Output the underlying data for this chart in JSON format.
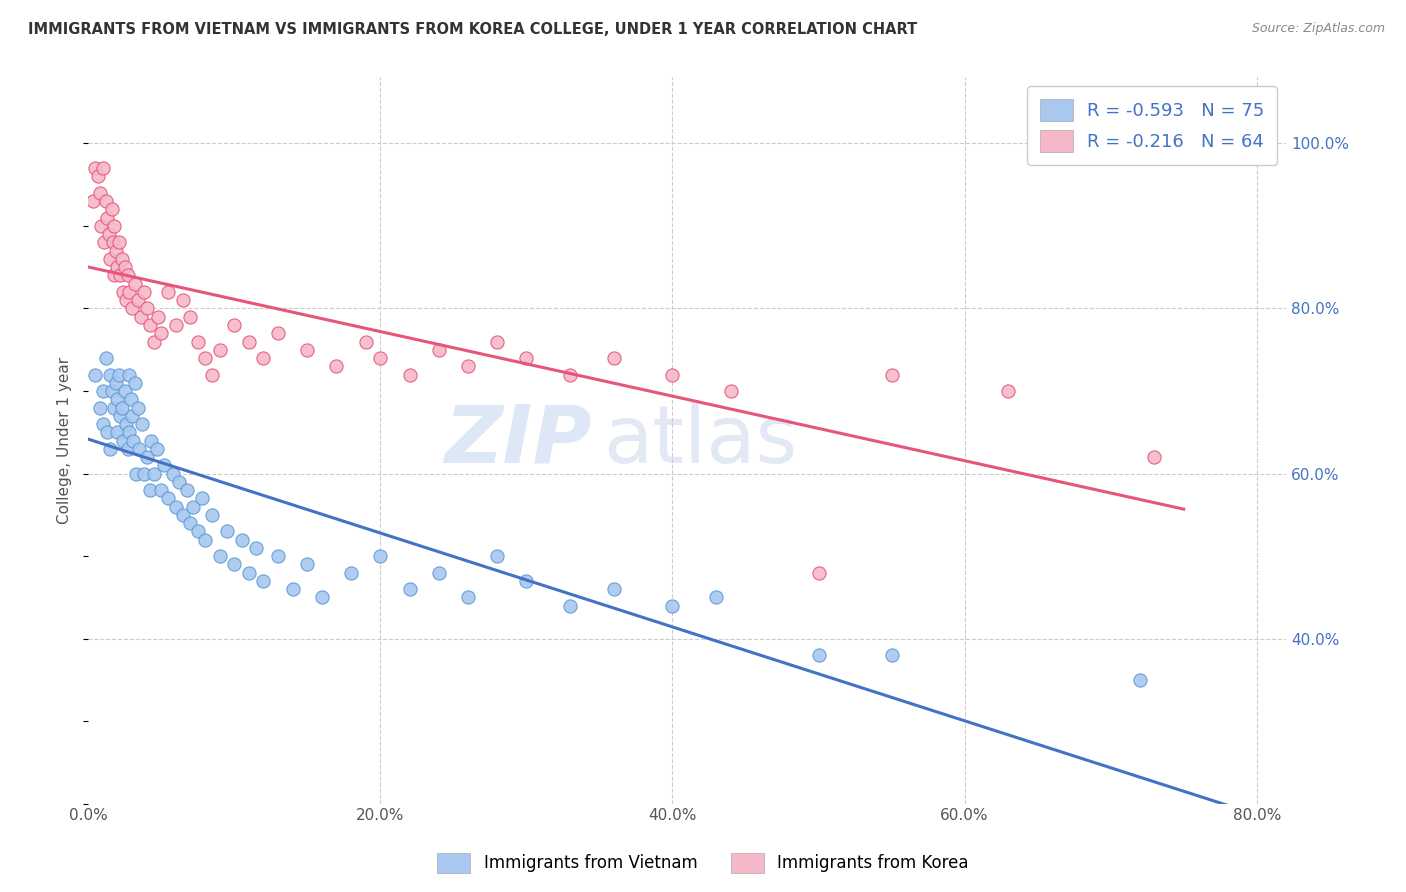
{
  "title": "IMMIGRANTS FROM VIETNAM VS IMMIGRANTS FROM KOREA COLLEGE, UNDER 1 YEAR CORRELATION CHART",
  "source": "Source: ZipAtlas.com",
  "ylabel": "College, Under 1 year",
  "xlim": [
    0.0,
    0.82
  ],
  "ylim": [
    0.2,
    1.08
  ],
  "xtick_labels": [
    "0.0%",
    "20.0%",
    "40.0%",
    "60.0%",
    "80.0%"
  ],
  "xtick_values": [
    0.0,
    0.2,
    0.4,
    0.6,
    0.8
  ],
  "ytick_labels_right": [
    "100.0%",
    "80.0%",
    "60.0%",
    "40.0%"
  ],
  "ytick_values": [
    1.0,
    0.8,
    0.6,
    0.4
  ],
  "legend_labels": [
    "Immigrants from Vietnam",
    "Immigrants from Korea"
  ],
  "legend_R": [
    -0.593,
    -0.216
  ],
  "legend_N": [
    75,
    64
  ],
  "blue_scatter_color": "#A8C8F0",
  "pink_scatter_color": "#F5B8C8",
  "blue_line_color": "#4472C4",
  "pink_line_color": "#E8557A",
  "blue_edge_color": "#5B9BD5",
  "pink_edge_color": "#E8557A",
  "watermark_zip": "ZIP",
  "watermark_atlas": "atlas",
  "vietnam_x": [
    0.005,
    0.008,
    0.01,
    0.01,
    0.012,
    0.013,
    0.015,
    0.015,
    0.016,
    0.018,
    0.019,
    0.02,
    0.02,
    0.021,
    0.022,
    0.023,
    0.024,
    0.025,
    0.026,
    0.027,
    0.028,
    0.028,
    0.029,
    0.03,
    0.031,
    0.032,
    0.033,
    0.034,
    0.035,
    0.037,
    0.038,
    0.04,
    0.042,
    0.043,
    0.045,
    0.047,
    0.05,
    0.052,
    0.055,
    0.058,
    0.06,
    0.062,
    0.065,
    0.068,
    0.07,
    0.072,
    0.075,
    0.078,
    0.08,
    0.085,
    0.09,
    0.095,
    0.1,
    0.105,
    0.11,
    0.115,
    0.12,
    0.13,
    0.14,
    0.15,
    0.16,
    0.18,
    0.2,
    0.22,
    0.24,
    0.26,
    0.28,
    0.3,
    0.33,
    0.36,
    0.4,
    0.43,
    0.5,
    0.55,
    0.72
  ],
  "vietnam_y": [
    0.72,
    0.68,
    0.7,
    0.66,
    0.74,
    0.65,
    0.72,
    0.63,
    0.7,
    0.68,
    0.71,
    0.65,
    0.69,
    0.72,
    0.67,
    0.68,
    0.64,
    0.7,
    0.66,
    0.63,
    0.72,
    0.65,
    0.69,
    0.67,
    0.64,
    0.71,
    0.6,
    0.68,
    0.63,
    0.66,
    0.6,
    0.62,
    0.58,
    0.64,
    0.6,
    0.63,
    0.58,
    0.61,
    0.57,
    0.6,
    0.56,
    0.59,
    0.55,
    0.58,
    0.54,
    0.56,
    0.53,
    0.57,
    0.52,
    0.55,
    0.5,
    0.53,
    0.49,
    0.52,
    0.48,
    0.51,
    0.47,
    0.5,
    0.46,
    0.49,
    0.45,
    0.48,
    0.5,
    0.46,
    0.48,
    0.45,
    0.5,
    0.47,
    0.44,
    0.46,
    0.44,
    0.45,
    0.38,
    0.38,
    0.35
  ],
  "korea_x": [
    0.003,
    0.005,
    0.007,
    0.008,
    0.009,
    0.01,
    0.011,
    0.012,
    0.013,
    0.014,
    0.015,
    0.016,
    0.017,
    0.018,
    0.018,
    0.019,
    0.02,
    0.021,
    0.022,
    0.023,
    0.024,
    0.025,
    0.026,
    0.027,
    0.028,
    0.03,
    0.032,
    0.034,
    0.036,
    0.038,
    0.04,
    0.042,
    0.045,
    0.048,
    0.05,
    0.055,
    0.06,
    0.065,
    0.07,
    0.075,
    0.08,
    0.085,
    0.09,
    0.1,
    0.11,
    0.12,
    0.13,
    0.15,
    0.17,
    0.19,
    0.2,
    0.22,
    0.24,
    0.26,
    0.28,
    0.3,
    0.33,
    0.36,
    0.4,
    0.44,
    0.5,
    0.55,
    0.63,
    0.73
  ],
  "korea_y": [
    0.93,
    0.97,
    0.96,
    0.94,
    0.9,
    0.97,
    0.88,
    0.93,
    0.91,
    0.89,
    0.86,
    0.92,
    0.88,
    0.84,
    0.9,
    0.87,
    0.85,
    0.88,
    0.84,
    0.86,
    0.82,
    0.85,
    0.81,
    0.84,
    0.82,
    0.8,
    0.83,
    0.81,
    0.79,
    0.82,
    0.8,
    0.78,
    0.76,
    0.79,
    0.77,
    0.82,
    0.78,
    0.81,
    0.79,
    0.76,
    0.74,
    0.72,
    0.75,
    0.78,
    0.76,
    0.74,
    0.77,
    0.75,
    0.73,
    0.76,
    0.74,
    0.72,
    0.75,
    0.73,
    0.76,
    0.74,
    0.72,
    0.74,
    0.72,
    0.7,
    0.48,
    0.72,
    0.7,
    0.62
  ]
}
